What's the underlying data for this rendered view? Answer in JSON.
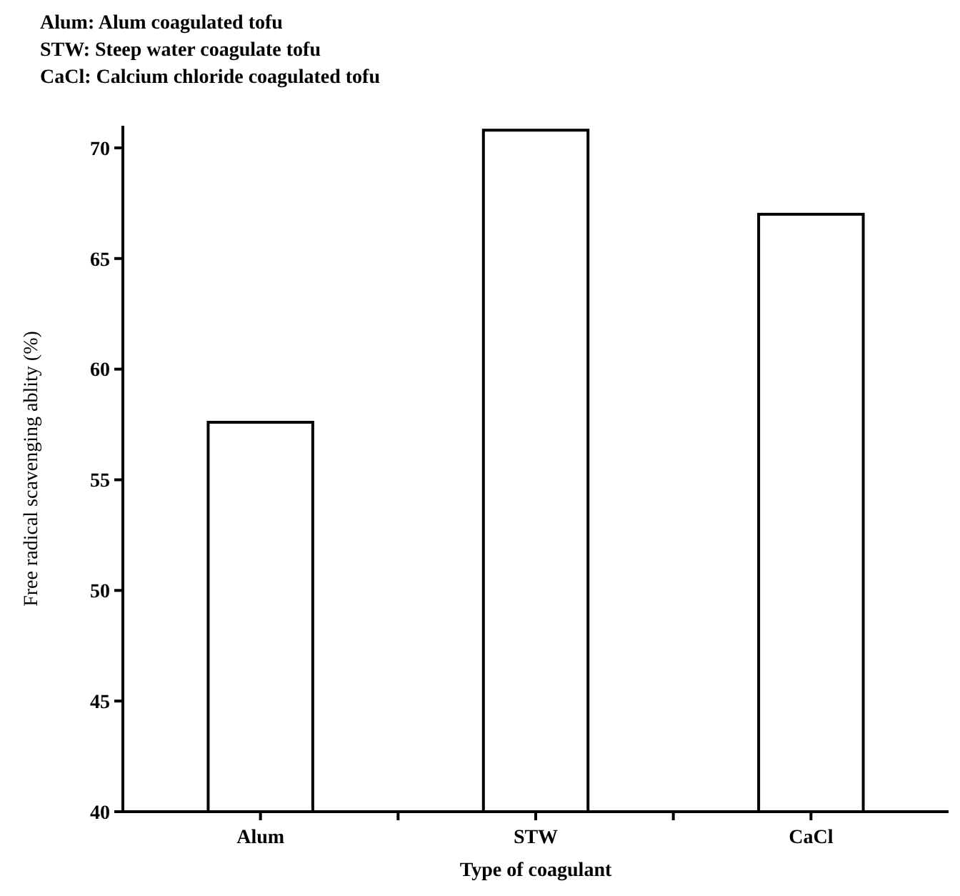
{
  "chart_data": {
    "type": "bar",
    "xlabel": "Type of coagulant",
    "ylabel": "Free radical scavenging ablity (%)",
    "annotations": [
      "Alum: Alum coagulated tofu",
      "STW: Steep water coagulate tofu",
      "CaCl: Calcium chloride coagulated tofu"
    ],
    "categories": [
      "Alum",
      "STW",
      "CaCl"
    ],
    "values": [
      57.6,
      70.8,
      67.0
    ],
    "color": "#ffffff",
    "ylim": [
      40,
      71
    ],
    "yticks": [
      40,
      45,
      50,
      55,
      60,
      65,
      70
    ],
    "grid": false
  }
}
